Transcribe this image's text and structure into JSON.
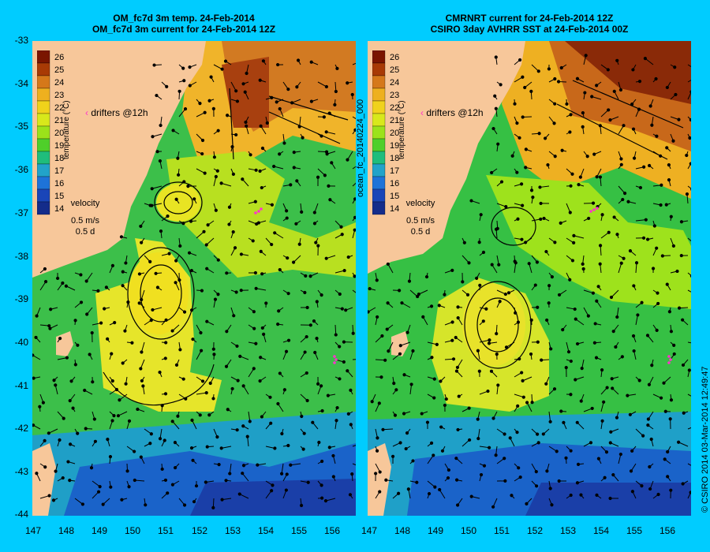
{
  "left_panel": {
    "title_line1": "OM_fc7d 3m temp. 24-Feb-2014",
    "title_line2": "OM_fc7d 3m current for 24-Feb-2014 12Z",
    "side_label": "ocean_fc_20140224_000"
  },
  "right_panel": {
    "title_line1": "CMRNRT current for 24-Feb-2014 12Z",
    "title_line2": "CSIRO 3day AVHRR SST at 24-Feb-2014 00Z"
  },
  "credit": "© CSIRO 2014   03-Mar-2014 12:49:47",
  "colorbar": {
    "title": "temperature (°C)",
    "ticks": [
      "26",
      "25",
      "24",
      "23",
      "22",
      "21",
      "20",
      "19",
      "18",
      "17",
      "16",
      "15",
      "14"
    ],
    "colors": [
      "#7a1500",
      "#a83a05",
      "#d5781a",
      "#eeb01f",
      "#f0d21b",
      "#d8e81b",
      "#9ce21a",
      "#4fcf2a",
      "#1fbd7c",
      "#22a3c9",
      "#1e73d8",
      "#1a45b8",
      "#142c8a"
    ]
  },
  "legend": {
    "drifters": "drifters @12h",
    "velocity": "velocity",
    "speed": "0.5 m/s",
    "duration": "0.5 d"
  },
  "axes": {
    "y_ticks": [
      "-33",
      "-34",
      "-35",
      "-36",
      "-37",
      "-38",
      "-39",
      "-40",
      "-41",
      "-42",
      "-43",
      "-44"
    ],
    "x_ticks": [
      "147",
      "148",
      "149",
      "150",
      "151",
      "152",
      "153",
      "154",
      "155",
      "156"
    ]
  },
  "colors": {
    "background": "#00ccff",
    "land": "#f7c79a",
    "drifter": "#ff33cc"
  }
}
